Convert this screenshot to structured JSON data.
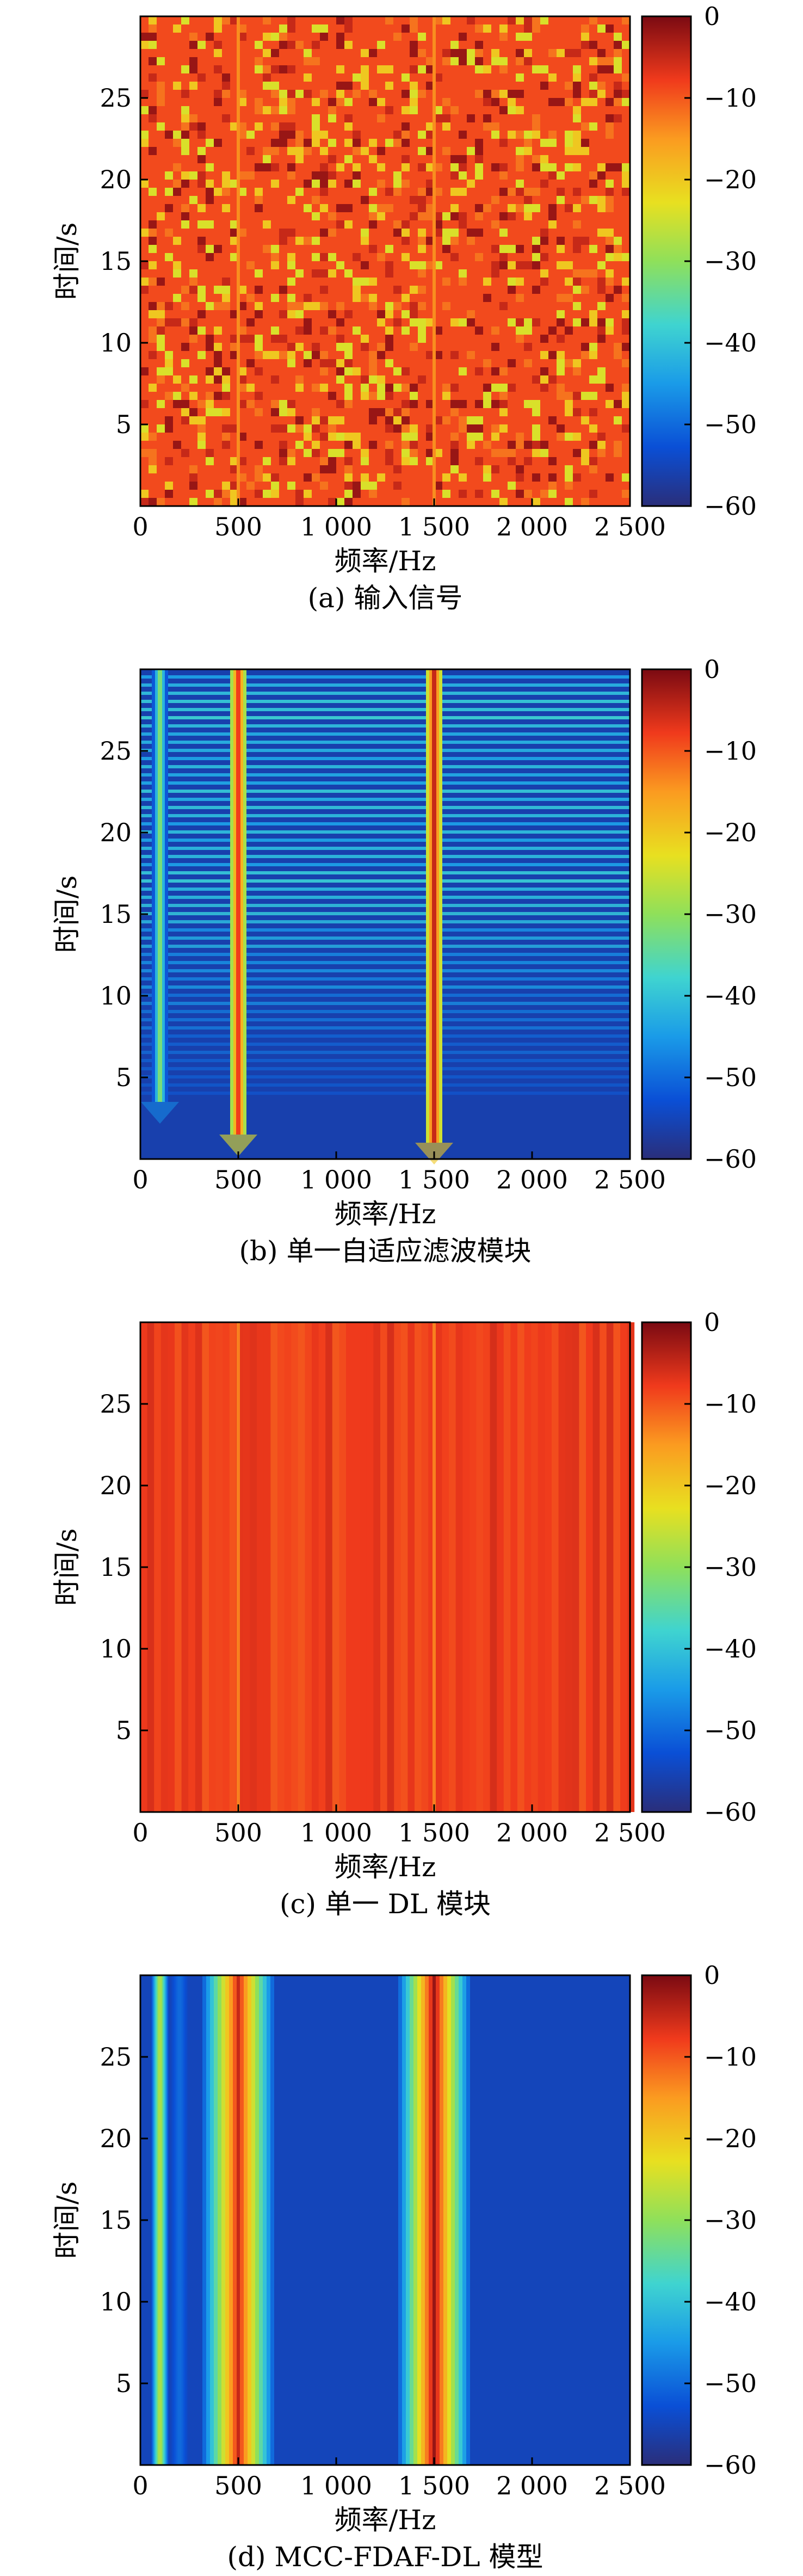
{
  "colorbar": {
    "ticks": [
      0,
      -10,
      -20,
      -30,
      -40,
      -50,
      -60
    ],
    "tick_labels": [
      "0",
      "−10",
      "−20",
      "−30",
      "−40",
      "−50",
      "−60"
    ],
    "range": [
      -60,
      0
    ],
    "colormap": "jet"
  },
  "chart_data": [
    {
      "type": "heatmap",
      "caption": "(a) 输入信号",
      "xlabel": "频率/Hz",
      "ylabel": "时间/s",
      "xlim": [
        0,
        2500
      ],
      "ylim": [
        0,
        30
      ],
      "xticks": [
        0,
        500,
        1000,
        1500,
        2000,
        2500
      ],
      "xtick_labels": [
        "0",
        "500",
        "1 000",
        "1 500",
        "2 000",
        "2 500"
      ],
      "yticks": [
        5,
        10,
        15,
        20,
        25
      ],
      "ytick_labels": [
        "5",
        "10",
        "15",
        "20",
        "25"
      ],
      "clim": [
        -60,
        0
      ],
      "background_level": -9,
      "texture": "random-noise",
      "lines": [
        {
          "freq": 500,
          "level": -14,
          "t_start": 0
        },
        {
          "freq": 1500,
          "level": -14,
          "t_start": 0
        }
      ]
    },
    {
      "type": "heatmap",
      "caption": "(b) 单一自适应滤波模块",
      "xlabel": "频率/Hz",
      "ylabel": "时间/s",
      "xlim": [
        0,
        2500
      ],
      "ylim": [
        0,
        30
      ],
      "xticks": [
        0,
        500,
        1000,
        1500,
        2000,
        2500
      ],
      "xtick_labels": [
        "0",
        "500",
        "1 000",
        "1 500",
        "2 000",
        "2 500"
      ],
      "yticks": [
        5,
        10,
        15,
        20,
        25
      ],
      "ytick_labels": [
        "5",
        "10",
        "15",
        "20",
        "25"
      ],
      "clim": [
        -60,
        0
      ],
      "background_level": -56,
      "texture": "horizontal-striations",
      "lines": [
        {
          "freq": 100,
          "level": -32,
          "t_start": 3.5
        },
        {
          "freq": 500,
          "level": -8,
          "t_start": 1.5
        },
        {
          "freq": 1500,
          "level": -5,
          "t_start": 1.0
        }
      ]
    },
    {
      "type": "heatmap",
      "caption": "(c) 单一 DL 模块",
      "xlabel": "频率/Hz",
      "ylabel": "时间/s",
      "xlim": [
        0,
        2500
      ],
      "ylim": [
        0,
        30
      ],
      "xticks": [
        0,
        500,
        1000,
        1500,
        2000,
        2500
      ],
      "xtick_labels": [
        "0",
        "500",
        "1 000",
        "1 500",
        "2 000",
        "2 500"
      ],
      "yticks": [
        5,
        10,
        15,
        20,
        25
      ],
      "ytick_labels": [
        "5",
        "10",
        "15",
        "20",
        "25"
      ],
      "clim": [
        -60,
        0
      ],
      "background_level": -8,
      "texture": "vertical-stripes",
      "lines": [
        {
          "freq": 500,
          "level": -13,
          "t_start": 0
        },
        {
          "freq": 1500,
          "level": -13,
          "t_start": 0
        }
      ]
    },
    {
      "type": "heatmap",
      "caption": "(d) MCC-FDAF-DL 模型",
      "xlabel": "频率/Hz",
      "ylabel": "时间/s",
      "xlim": [
        0,
        2500
      ],
      "ylim": [
        0,
        30
      ],
      "xticks": [
        0,
        500,
        1000,
        1500,
        2000,
        2500
      ],
      "xtick_labels": [
        "0",
        "500",
        "1 000",
        "1 500",
        "2 000",
        "2 500"
      ],
      "yticks": [
        5,
        10,
        15,
        20,
        25
      ],
      "ytick_labels": [
        "5",
        "10",
        "15",
        "20",
        "25"
      ],
      "clim": [
        -60,
        0
      ],
      "background_level": -55,
      "texture": "smooth",
      "lines": [
        {
          "freq": 100,
          "level": -28,
          "t_start": 0
        },
        {
          "freq": 200,
          "level": -50,
          "t_start": 0
        },
        {
          "freq": 500,
          "level": -5,
          "t_start": 0
        },
        {
          "freq": 1500,
          "level": -2,
          "t_start": 0
        }
      ]
    }
  ]
}
